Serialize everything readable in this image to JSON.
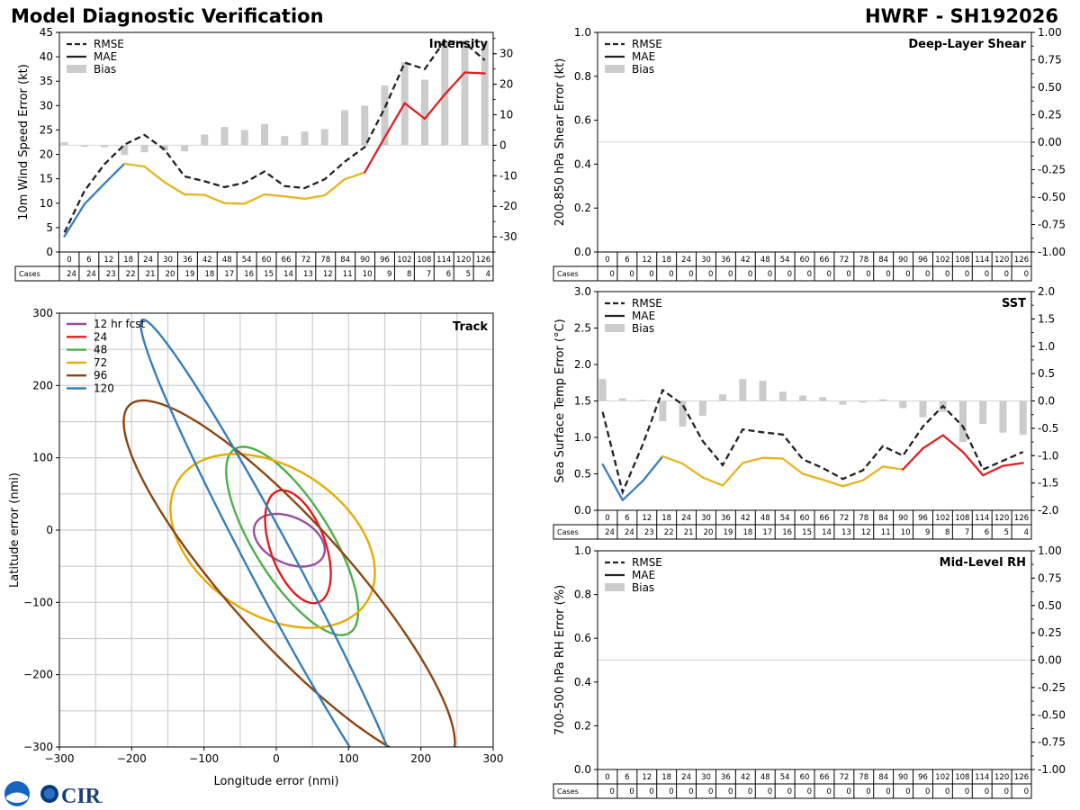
{
  "header": {
    "left_title": "Model Diagnostic Verification",
    "right_title": "HWRF - SH192026"
  },
  "footer": {
    "logo_text": "CIRA"
  },
  "chart_data": [
    {
      "id": "intensity",
      "type": "line+bar",
      "title": "Intensity",
      "ylabel": "10m Wind Speed Error (kt)",
      "ylim": [
        0,
        45
      ],
      "yticks": [
        0,
        5,
        10,
        15,
        20,
        25,
        30,
        35,
        40,
        45
      ],
      "y2lim": [
        -35,
        37
      ],
      "y2ticks": [
        -30,
        -20,
        -10,
        0,
        10,
        20,
        30
      ],
      "legend": [
        "RMSE",
        "MAE",
        "Bias"
      ],
      "x": [
        0,
        6,
        12,
        18,
        24,
        30,
        36,
        42,
        48,
        54,
        60,
        66,
        72,
        78,
        84,
        90,
        96,
        102,
        108,
        114,
        120,
        126
      ],
      "rmse": [
        4.0,
        12.5,
        18.0,
        22.0,
        24.0,
        21.0,
        15.5,
        14.5,
        13.3,
        14.2,
        16.5,
        13.5,
        13.1,
        14.9,
        18.5,
        21.5,
        29.5,
        38.8,
        37.5,
        43.3,
        42.8,
        39.3
      ],
      "mae": [
        3.2,
        9.8,
        14.0,
        18.1,
        17.5,
        14.3,
        11.8,
        11.7,
        10.0,
        9.9,
        11.8,
        11.4,
        10.9,
        11.6,
        14.9,
        16.3,
        23.5,
        30.5,
        27.3,
        32.3,
        36.8,
        36.6
      ],
      "mae_color_idx": [
        0,
        0,
        0,
        0,
        1,
        1,
        1,
        1,
        1,
        1,
        1,
        1,
        1,
        1,
        1,
        1,
        2,
        2,
        2,
        2,
        2,
        2
      ],
      "bias": [
        1.0,
        -0.5,
        -0.7,
        -3.2,
        -2.3,
        -1.8,
        -2.0,
        3.5,
        6.0,
        5.0,
        7.0,
        3.0,
        4.5,
        5.3,
        11.5,
        13.0,
        19.6,
        27.3,
        21.5,
        34.2,
        34.5,
        34.0
      ],
      "cases_label": "Cases",
      "cases": [
        24,
        24,
        23,
        22,
        21,
        20,
        19,
        18,
        17,
        16,
        15,
        14,
        13,
        12,
        11,
        10,
        9,
        8,
        7,
        6,
        5,
        4
      ]
    },
    {
      "id": "shear",
      "type": "line+bar",
      "title": "Deep-Layer Shear",
      "ylabel": "200-850 hPa Shear Error (kt)",
      "ylim": [
        0,
        1
      ],
      "yticks": [
        0.0,
        0.2,
        0.4,
        0.6,
        0.8,
        1.0
      ],
      "y2lim": [
        -1,
        1
      ],
      "y2ticks": [
        -1.0,
        -0.75,
        -0.5,
        -0.25,
        0.0,
        0.25,
        0.5,
        0.75,
        1.0
      ],
      "legend": [
        "RMSE",
        "MAE",
        "Bias"
      ],
      "x": [
        0,
        6,
        12,
        18,
        24,
        30,
        36,
        42,
        48,
        54,
        60,
        66,
        72,
        78,
        84,
        90,
        96,
        102,
        108,
        114,
        120,
        126
      ],
      "cases_label": "Cases",
      "cases": [
        0,
        0,
        0,
        0,
        0,
        0,
        0,
        0,
        0,
        0,
        0,
        0,
        0,
        0,
        0,
        0,
        0,
        0,
        0,
        0,
        0,
        0
      ]
    },
    {
      "id": "sst",
      "type": "line+bar",
      "title": "SST",
      "ylabel": "Sea Surface Temp Error (°C)",
      "ylim": [
        0,
        3
      ],
      "yticks": [
        0.0,
        0.5,
        1.0,
        1.5,
        2.0,
        2.5,
        3.0
      ],
      "y2lim": [
        -2,
        2
      ],
      "y2ticks": [
        -2.0,
        -1.5,
        -1.0,
        -0.5,
        0.0,
        0.5,
        1.0,
        1.5,
        2.0
      ],
      "legend": [
        "RMSE",
        "MAE",
        "Bias"
      ],
      "x": [
        0,
        6,
        12,
        18,
        24,
        30,
        36,
        42,
        48,
        54,
        60,
        66,
        72,
        78,
        84,
        90,
        96,
        102,
        108,
        114,
        120,
        126
      ],
      "rmse": [
        1.35,
        0.25,
        0.9,
        1.65,
        1.45,
        0.95,
        0.62,
        1.11,
        1.07,
        1.04,
        0.7,
        0.58,
        0.43,
        0.55,
        0.88,
        0.75,
        1.15,
        1.43,
        1.15,
        0.56,
        0.68,
        0.8
      ],
      "mae": [
        0.63,
        0.14,
        0.4,
        0.74,
        0.64,
        0.45,
        0.34,
        0.65,
        0.72,
        0.71,
        0.5,
        0.42,
        0.33,
        0.41,
        0.6,
        0.56,
        0.85,
        1.03,
        0.8,
        0.48,
        0.61,
        0.65
      ],
      "mae_color_idx": [
        0,
        0,
        0,
        0,
        1,
        1,
        1,
        1,
        1,
        1,
        1,
        1,
        1,
        1,
        1,
        1,
        2,
        2,
        2,
        2,
        2,
        2
      ],
      "bias": [
        0.4,
        0.05,
        0.02,
        -0.37,
        -0.47,
        -0.27,
        0.12,
        0.4,
        0.37,
        0.17,
        0.1,
        0.07,
        -0.07,
        -0.03,
        0.03,
        -0.13,
        -0.3,
        -0.2,
        -0.75,
        -0.42,
        -0.58,
        -0.62
      ],
      "cases_label": "Cases",
      "cases": [
        24,
        24,
        23,
        22,
        21,
        20,
        19,
        18,
        17,
        16,
        15,
        14,
        13,
        12,
        11,
        10,
        9,
        8,
        7,
        6,
        5,
        4
      ]
    },
    {
      "id": "rh",
      "type": "line+bar",
      "title": "Mid-Level RH",
      "ylabel": "700-500 hPa RH Error (%)",
      "ylim": [
        0,
        1
      ],
      "yticks": [
        0.0,
        0.2,
        0.4,
        0.6,
        0.8,
        1.0
      ],
      "y2lim": [
        -1,
        1
      ],
      "y2ticks": [
        -1.0,
        -0.75,
        -0.5,
        -0.25,
        0.0,
        0.25,
        0.5,
        0.75,
        1.0
      ],
      "legend": [
        "RMSE",
        "MAE",
        "Bias"
      ],
      "x": [
        0,
        6,
        12,
        18,
        24,
        30,
        36,
        42,
        48,
        54,
        60,
        66,
        72,
        78,
        84,
        90,
        96,
        102,
        108,
        114,
        120,
        126
      ],
      "cases_label": "Cases",
      "cases": [
        0,
        0,
        0,
        0,
        0,
        0,
        0,
        0,
        0,
        0,
        0,
        0,
        0,
        0,
        0,
        0,
        0,
        0,
        0,
        0,
        0,
        0
      ]
    },
    {
      "id": "track",
      "type": "ellipse",
      "title": "Track",
      "xlabel": "Longitude error (nmi)",
      "ylabel": "Latitude error (nmi)",
      "xlim": [
        -300,
        300
      ],
      "ylim": [
        -300,
        300
      ],
      "xticks": [
        -300,
        -200,
        -100,
        0,
        100,
        200,
        300
      ],
      "yticks": [
        -300,
        -200,
        -100,
        0,
        100,
        200,
        300
      ],
      "grid": true,
      "legend_position": "top-left",
      "ellipses": [
        {
          "label": "12 hr fcst",
          "color": "#984ea3",
          "cx": 18,
          "cy": -14,
          "a": 52,
          "b": 32,
          "angle": -25
        },
        {
          "label": "24",
          "color": "#e41a1c",
          "cx": 30,
          "cy": -23,
          "a": 82,
          "b": 38,
          "angle": -70
        },
        {
          "label": "48",
          "color": "#4daf4a",
          "cx": 22,
          "cy": -15,
          "a": 150,
          "b": 53,
          "angle": -58
        },
        {
          "label": "72",
          "color": "#e6ab02",
          "cx": -5,
          "cy": -15,
          "a": 155,
          "b": 102,
          "angle": -33
        },
        {
          "label": "96",
          "color": "#8b4513",
          "cx": 18,
          "cy": -72,
          "a": 330,
          "b": 82,
          "angle": -48
        },
        {
          "label": "120",
          "color": "#377eb8",
          "cx": 0,
          "cy": -58,
          "a": 395,
          "b": 32,
          "angle": -62
        }
      ]
    }
  ]
}
